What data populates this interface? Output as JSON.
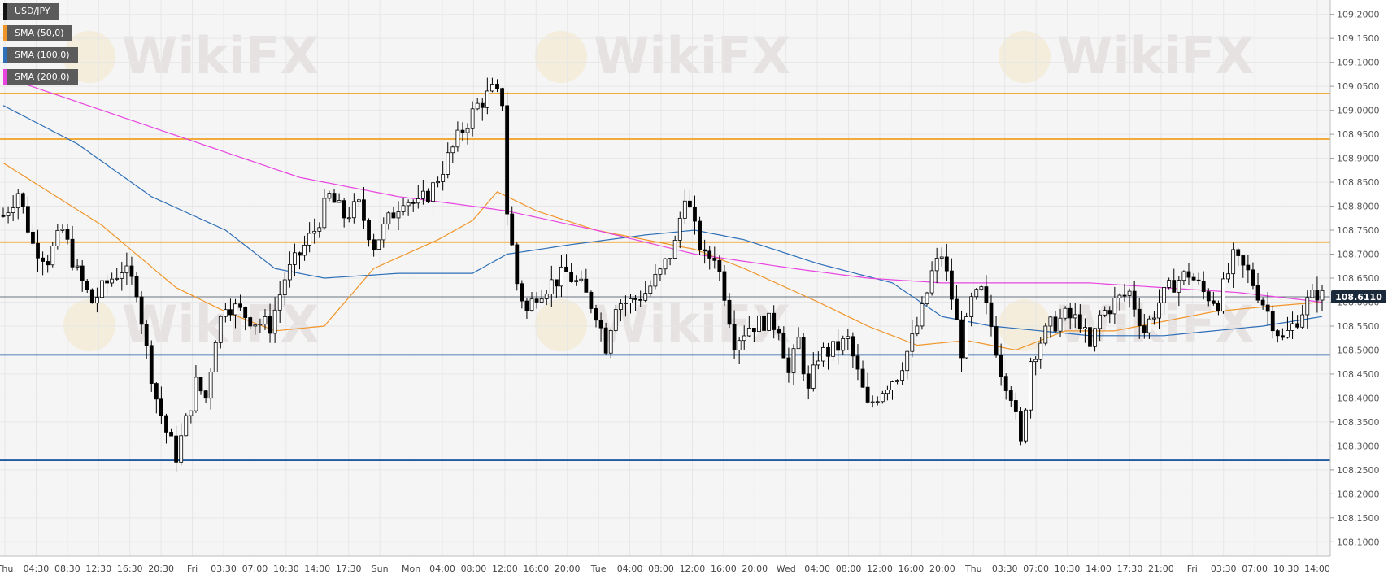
{
  "legend": {
    "symbol": "USD/JPY",
    "indicators": [
      {
        "label": "SMA (50,0)",
        "color": "#f0952a"
      },
      {
        "label": "SMA (100,0)",
        "color": "#2f6fb8"
      },
      {
        "label": "SMA (200,0)",
        "color": "#e845e0"
      }
    ]
  },
  "watermark": "WikiFX",
  "colors": {
    "resistance": "#f0a020",
    "support": "#1f5aa0",
    "sma50": "#f0952a",
    "sma100": "#2f6fb8",
    "sma200": "#e845e0",
    "candle": "#000000",
    "price_tag": "#1b2a3a"
  },
  "chart_data": {
    "type": "candlestick",
    "title": "",
    "instrument": "USD/JPY",
    "ylim": [
      108.07,
      109.23
    ],
    "y_ticks": [
      "109.2000",
      "109.1500",
      "109.1000",
      "109.0500",
      "109.0000",
      "108.9500",
      "108.9000",
      "108.8500",
      "108.8000",
      "108.7500",
      "108.7000",
      "108.6500",
      "108.6000",
      "108.5500",
      "108.5000",
      "108.4500",
      "108.4000",
      "108.3500",
      "108.3000",
      "108.2500",
      "108.2000",
      "108.1500",
      "108.1000"
    ],
    "x_ticks": [
      "Thu",
      "04:30",
      "08:30",
      "12:30",
      "16:30",
      "20:30",
      "Fri",
      "03:30",
      "07:00",
      "10:30",
      "14:00",
      "17:30",
      "Sun",
      "Mon",
      "04:00",
      "08:00",
      "12:00",
      "16:00",
      "20:00",
      "Tue",
      "04:00",
      "08:00",
      "12:00",
      "16:00",
      "20:00",
      "Wed",
      "04:00",
      "08:00",
      "12:00",
      "16:00",
      "20:00",
      "Thu",
      "03:30",
      "07:00",
      "10:30",
      "14:00",
      "17:30",
      "21:00",
      "Fri",
      "03:30",
      "07:00",
      "10:30",
      "14:00"
    ],
    "current_price": 108.611,
    "current_price_label": "108.6110",
    "horizontal_levels": [
      {
        "kind": "resistance",
        "value": 109.035
      },
      {
        "kind": "resistance",
        "value": 108.94
      },
      {
        "kind": "resistance",
        "value": 108.725
      },
      {
        "kind": "support",
        "value": 108.49
      },
      {
        "kind": "support",
        "value": 108.27
      }
    ],
    "close_path": [
      [
        0,
        108.78
      ],
      [
        3,
        108.83
      ],
      [
        6,
        108.72
      ],
      [
        9,
        108.69
      ],
      [
        12,
        108.75
      ],
      [
        15,
        108.66
      ],
      [
        18,
        108.6
      ],
      [
        21,
        108.64
      ],
      [
        24,
        108.67
      ],
      [
        27,
        108.63
      ],
      [
        29,
        108.5
      ],
      [
        31,
        108.4
      ],
      [
        33,
        108.33
      ],
      [
        35,
        108.28
      ],
      [
        37,
        108.35
      ],
      [
        39,
        108.43
      ],
      [
        41,
        108.4
      ],
      [
        43,
        108.53
      ],
      [
        45,
        108.6
      ],
      [
        48,
        108.58
      ],
      [
        51,
        108.56
      ],
      [
        54,
        108.55
      ],
      [
        57,
        108.65
      ],
      [
        60,
        108.7
      ],
      [
        63,
        108.75
      ],
      [
        66,
        108.82
      ],
      [
        69,
        108.78
      ],
      [
        72,
        108.8
      ],
      [
        75,
        108.72
      ],
      [
        78,
        108.77
      ],
      [
        81,
        108.82
      ],
      [
        84,
        108.8
      ],
      [
        87,
        108.84
      ],
      [
        90,
        108.9
      ],
      [
        93,
        108.96
      ],
      [
        96,
        109.01
      ],
      [
        99,
        109.04
      ],
      [
        101,
        109.02
      ],
      [
        102,
        108.79
      ],
      [
        104,
        108.64
      ],
      [
        106,
        108.58
      ],
      [
        108,
        108.62
      ],
      [
        111,
        108.64
      ],
      [
        114,
        108.66
      ],
      [
        117,
        108.63
      ],
      [
        120,
        108.58
      ],
      [
        122,
        108.51
      ],
      [
        124,
        108.6
      ],
      [
        127,
        108.6
      ],
      [
        130,
        108.62
      ],
      [
        133,
        108.66
      ],
      [
        136,
        108.72
      ],
      [
        138,
        108.83
      ],
      [
        140,
        108.75
      ],
      [
        142,
        108.69
      ],
      [
        144,
        108.7
      ],
      [
        146,
        108.62
      ],
      [
        148,
        108.52
      ],
      [
        151,
        108.55
      ],
      [
        154,
        108.56
      ],
      [
        157,
        108.55
      ],
      [
        159,
        108.45
      ],
      [
        161,
        108.52
      ],
      [
        163,
        108.41
      ],
      [
        165,
        108.49
      ],
      [
        168,
        108.5
      ],
      [
        171,
        108.52
      ],
      [
        173,
        108.45
      ],
      [
        175,
        108.38
      ],
      [
        178,
        108.42
      ],
      [
        181,
        108.45
      ],
      [
        184,
        108.52
      ],
      [
        186,
        108.58
      ],
      [
        188,
        108.66
      ],
      [
        190,
        108.7
      ],
      [
        192,
        108.61
      ],
      [
        194,
        108.5
      ],
      [
        196,
        108.6
      ],
      [
        198,
        108.62
      ],
      [
        200,
        108.55
      ],
      [
        202,
        108.46
      ],
      [
        204,
        108.41
      ],
      [
        206,
        108.3
      ],
      [
        208,
        108.48
      ],
      [
        210,
        108.52
      ],
      [
        212,
        108.55
      ],
      [
        215,
        108.57
      ],
      [
        218,
        108.56
      ],
      [
        220,
        108.5
      ],
      [
        222,
        108.57
      ],
      [
        225,
        108.6
      ],
      [
        228,
        108.62
      ],
      [
        231,
        108.54
      ],
      [
        234,
        108.6
      ],
      [
        237,
        108.64
      ],
      [
        240,
        108.66
      ],
      [
        243,
        108.62
      ],
      [
        246,
        108.6
      ],
      [
        249,
        108.69
      ],
      [
        252,
        108.66
      ],
      [
        255,
        108.6
      ],
      [
        257,
        108.56
      ],
      [
        259,
        108.52
      ],
      [
        261,
        108.55
      ],
      [
        264,
        108.6
      ],
      [
        266,
        108.62
      ],
      [
        267,
        108.611
      ]
    ],
    "sma50": [
      [
        0,
        108.89
      ],
      [
        20,
        108.76
      ],
      [
        35,
        108.63
      ],
      [
        45,
        108.58
      ],
      [
        55,
        108.54
      ],
      [
        65,
        108.55
      ],
      [
        75,
        108.67
      ],
      [
        88,
        108.73
      ],
      [
        95,
        108.77
      ],
      [
        100,
        108.83
      ],
      [
        108,
        108.79
      ],
      [
        120,
        108.75
      ],
      [
        130,
        108.73
      ],
      [
        140,
        108.71
      ],
      [
        150,
        108.67
      ],
      [
        165,
        108.6
      ],
      [
        175,
        108.55
      ],
      [
        185,
        108.51
      ],
      [
        195,
        108.52
      ],
      [
        205,
        108.5
      ],
      [
        215,
        108.54
      ],
      [
        225,
        108.54
      ],
      [
        235,
        108.56
      ],
      [
        245,
        108.58
      ],
      [
        255,
        108.59
      ],
      [
        267,
        108.6
      ]
    ],
    "sma100": [
      [
        0,
        109.01
      ],
      [
        15,
        108.93
      ],
      [
        30,
        108.82
      ],
      [
        45,
        108.75
      ],
      [
        55,
        108.67
      ],
      [
        65,
        108.65
      ],
      [
        80,
        108.66
      ],
      [
        95,
        108.66
      ],
      [
        102,
        108.7
      ],
      [
        115,
        108.72
      ],
      [
        130,
        108.74
      ],
      [
        140,
        108.75
      ],
      [
        150,
        108.73
      ],
      [
        165,
        108.68
      ],
      [
        180,
        108.64
      ],
      [
        190,
        108.57
      ],
      [
        200,
        108.55
      ],
      [
        210,
        108.54
      ],
      [
        220,
        108.53
      ],
      [
        235,
        108.53
      ],
      [
        245,
        108.54
      ],
      [
        255,
        108.55
      ],
      [
        267,
        108.57
      ]
    ],
    "sma200": [
      [
        0,
        109.07
      ],
      [
        20,
        109.0
      ],
      [
        40,
        108.93
      ],
      [
        60,
        108.86
      ],
      [
        80,
        108.82
      ],
      [
        95,
        108.8
      ],
      [
        102,
        108.79
      ],
      [
        120,
        108.75
      ],
      [
        140,
        108.7
      ],
      [
        160,
        108.67
      ],
      [
        175,
        108.65
      ],
      [
        190,
        108.64
      ],
      [
        205,
        108.64
      ],
      [
        220,
        108.64
      ],
      [
        235,
        108.63
      ],
      [
        250,
        108.62
      ],
      [
        267,
        108.6
      ]
    ],
    "grid": true
  }
}
